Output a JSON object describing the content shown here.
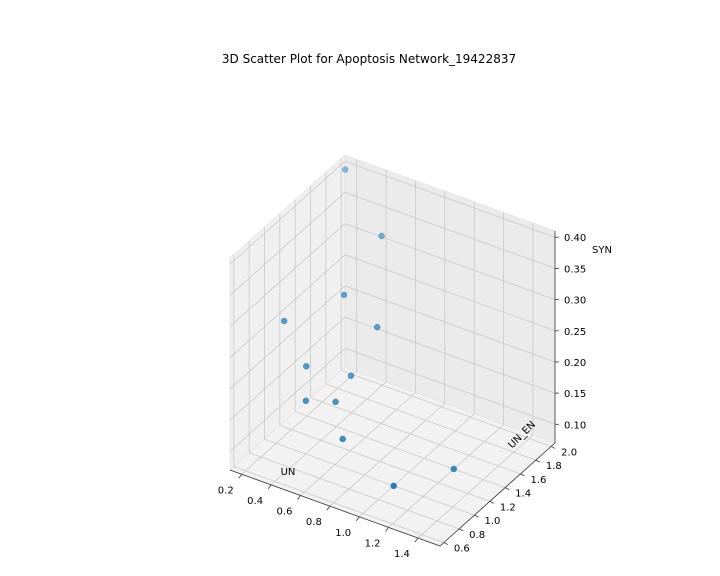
{
  "chart_data": {
    "type": "scatter",
    "title": "3D Scatter Plot for Apoptosis Network_19422837",
    "xlabel": "UN",
    "ylabel": "UN_EN",
    "zlabel": "SYN",
    "x_ticks": [
      "0.2",
      "0.4",
      "0.6",
      "0.8",
      "1.0",
      "1.2",
      "1.4"
    ],
    "y_ticks": [
      "0.6",
      "0.8",
      "1.0",
      "1.2",
      "1.4",
      "1.6",
      "1.8",
      "2.0"
    ],
    "z_ticks": [
      "0.10",
      "0.15",
      "0.20",
      "0.25",
      "0.30",
      "0.35",
      "0.40"
    ],
    "xlim": [
      0.12,
      1.55
    ],
    "ylim": [
      0.55,
      2.05
    ],
    "zlim": [
      0.07,
      0.41
    ],
    "grid": true,
    "point_color": "#1f77b4",
    "points": [
      {
        "x": 0.2,
        "y": 1.9,
        "z": 0.41
      },
      {
        "x": 0.5,
        "y": 1.8,
        "z": 0.34
      },
      {
        "x": 0.4,
        "y": 1.5,
        "z": 0.27
      },
      {
        "x": 0.6,
        "y": 1.55,
        "z": 0.23
      },
      {
        "x": 0.15,
        "y": 1.2,
        "z": 0.24
      },
      {
        "x": 0.3,
        "y": 1.2,
        "z": 0.18
      },
      {
        "x": 0.5,
        "y": 1.4,
        "z": 0.16
      },
      {
        "x": 0.35,
        "y": 1.1,
        "z": 0.14
      },
      {
        "x": 0.5,
        "y": 1.2,
        "z": 0.14
      },
      {
        "x": 0.6,
        "y": 1.1,
        "z": 0.1
      },
      {
        "x": 1.0,
        "y": 1.0,
        "z": 0.07
      },
      {
        "x": 1.2,
        "y": 1.4,
        "z": 0.07
      }
    ]
  }
}
